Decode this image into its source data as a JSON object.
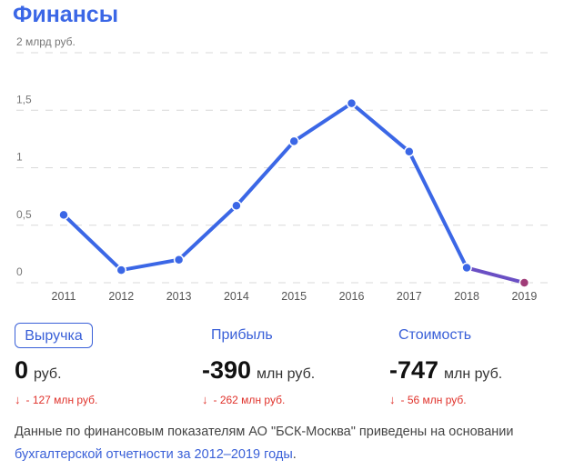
{
  "title": "Финансы",
  "colors": {
    "accent": "#3b67e6",
    "line": "#3b67e6",
    "last_point": "#a03c78",
    "negative": "#e0322b"
  },
  "chart_data": {
    "type": "line",
    "ylabel_top": "2 млрд руб.",
    "y_ticks": [
      "0",
      "0,5",
      "1",
      "1,5"
    ],
    "ylim": [
      0,
      2
    ],
    "grid": "horizontal-dashed",
    "categories": [
      "2011",
      "2012",
      "2013",
      "2014",
      "2015",
      "2016",
      "2017",
      "2018",
      "2019"
    ],
    "values": [
      0.59,
      0.11,
      0.2,
      0.67,
      1.23,
      1.56,
      1.14,
      0.13,
      0.0
    ]
  },
  "tabs": [
    {
      "label": "Выручка",
      "active": true
    },
    {
      "label": "Прибыль",
      "active": false
    },
    {
      "label": "Стоимость",
      "active": false
    }
  ],
  "metrics": [
    {
      "value": "0",
      "unit": "руб.",
      "arrow": "↓",
      "change": "- 127 млн руб."
    },
    {
      "value": "-390",
      "unit": "млн руб.",
      "arrow": "↓",
      "change": "- 262 млн руб."
    },
    {
      "value": "-747",
      "unit": "млн руб.",
      "arrow": "↓",
      "change": "- 56 млн руб."
    }
  ],
  "note": {
    "text": "Данные по финансовым показателям АО \"БСК-Москва\" приведены на основании ",
    "link": "бухгалтерской отчетности за 2012–2019 годы",
    "tail": "."
  }
}
